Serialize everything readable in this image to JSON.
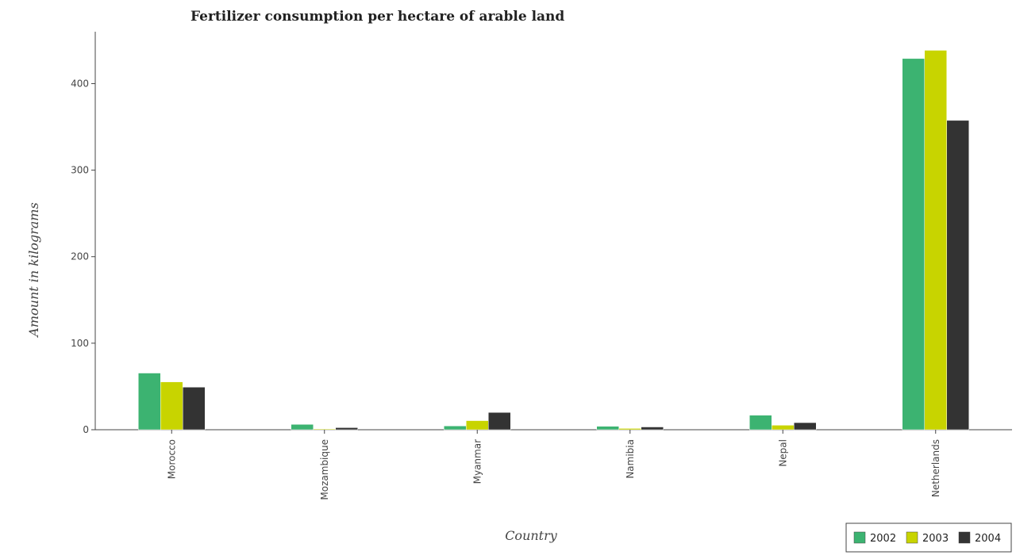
{
  "chart_data": {
    "type": "bar",
    "title": "Fertilizer consumption per hectare of arable land",
    "xlabel": "Country",
    "ylabel": "Amount in kilograms",
    "categories": [
      "Morocco",
      "Mozambique",
      "Myanmar",
      "Namibia",
      "Nepal",
      "Netherlands"
    ],
    "series": [
      {
        "name": "2002",
        "color": "#3cb371",
        "values": [
          65.5,
          6.2,
          4.4,
          4.0,
          16.8,
          429.0
        ]
      },
      {
        "name": "2003",
        "color": "#c8d400",
        "values": [
          55.3,
          0.9,
          10.5,
          1.5,
          5.2,
          438.5
        ]
      },
      {
        "name": "2004",
        "color": "#333333",
        "values": [
          49.2,
          2.4,
          20.0,
          3.2,
          8.2,
          357.5
        ]
      }
    ],
    "y_ticks": [
      "0",
      "100",
      "200",
      "300",
      "400"
    ],
    "ylim": [
      0,
      460
    ],
    "grid": false,
    "legend_position": "bottom-right"
  }
}
